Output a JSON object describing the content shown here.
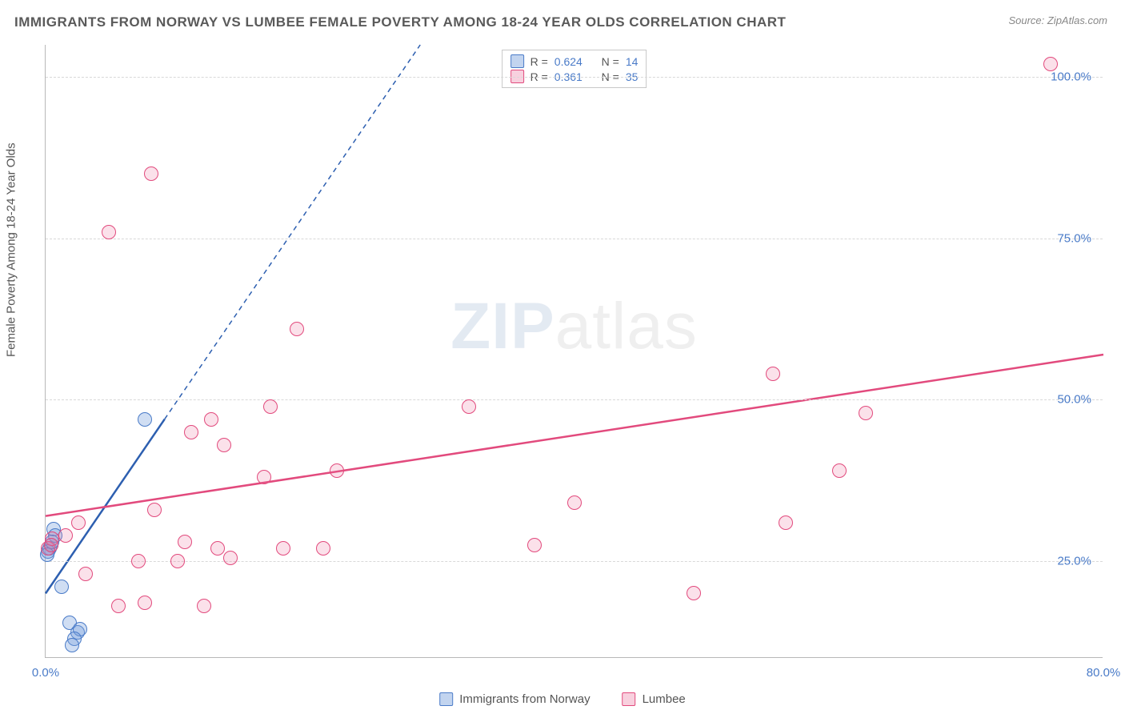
{
  "title": "IMMIGRANTS FROM NORWAY VS LUMBEE FEMALE POVERTY AMONG 18-24 YEAR OLDS CORRELATION CHART",
  "source": "Source: ZipAtlas.com",
  "watermark_zip": "ZIP",
  "watermark_atlas": "atlas",
  "y_axis_label": "Female Poverty Among 18-24 Year Olds",
  "chart": {
    "type": "scatter",
    "xlim": [
      0,
      80
    ],
    "ylim": [
      10,
      105
    ],
    "xticks": [
      {
        "v": 0,
        "label": "0.0%"
      },
      {
        "v": 80,
        "label": "80.0%"
      }
    ],
    "yticks": [
      {
        "v": 25,
        "label": "25.0%"
      },
      {
        "v": 50,
        "label": "50.0%"
      },
      {
        "v": 75,
        "label": "75.0%"
      },
      {
        "v": 100,
        "label": "100.0%"
      }
    ],
    "grid_color": "#d8d8d8",
    "background_color": "#ffffff",
    "marker_radius": 9,
    "series": [
      {
        "name": "Immigrants from Norway",
        "key": "norway",
        "color_fill": "rgba(120,160,220,0.35)",
        "color_stroke": "#4a7bc8",
        "R": 0.624,
        "N": 14,
        "trend": {
          "x1": 0,
          "y1": 20,
          "x2": 9,
          "y2": 47,
          "dash_extend_to_y": 105,
          "stroke": "#2d5fb0",
          "width": 2.5
        },
        "points": [
          {
            "x": 0.3,
            "y": 27
          },
          {
            "x": 0.4,
            "y": 27.5
          },
          {
            "x": 0.6,
            "y": 30
          },
          {
            "x": 0.2,
            "y": 26.5
          },
          {
            "x": 0.1,
            "y": 26
          },
          {
            "x": 0.7,
            "y": 29
          },
          {
            "x": 0.5,
            "y": 28
          },
          {
            "x": 1.2,
            "y": 21
          },
          {
            "x": 1.8,
            "y": 15.5
          },
          {
            "x": 2.4,
            "y": 14
          },
          {
            "x": 2.6,
            "y": 14.5
          },
          {
            "x": 2.2,
            "y": 13
          },
          {
            "x": 2.0,
            "y": 12
          },
          {
            "x": 7.5,
            "y": 47
          }
        ]
      },
      {
        "name": "Lumbee",
        "key": "lumbee",
        "color_fill": "rgba(235,120,160,0.22)",
        "color_stroke": "#e24a7d",
        "R": 0.361,
        "N": 35,
        "trend": {
          "x1": 0,
          "y1": 32,
          "x2": 80,
          "y2": 57,
          "stroke": "#e24a7d",
          "width": 2.5
        },
        "points": [
          {
            "x": 0.2,
            "y": 27
          },
          {
            "x": 0.5,
            "y": 28.5
          },
          {
            "x": 0.4,
            "y": 27.5
          },
          {
            "x": 3,
            "y": 23
          },
          {
            "x": 4.8,
            "y": 76
          },
          {
            "x": 5.5,
            "y": 18
          },
          {
            "x": 7,
            "y": 25
          },
          {
            "x": 7.5,
            "y": 18.5
          },
          {
            "x": 8,
            "y": 85
          },
          {
            "x": 8.2,
            "y": 33
          },
          {
            "x": 10,
            "y": 25
          },
          {
            "x": 10.5,
            "y": 28
          },
          {
            "x": 11,
            "y": 45
          },
          {
            "x": 12,
            "y": 18
          },
          {
            "x": 12.5,
            "y": 47
          },
          {
            "x": 13,
            "y": 27
          },
          {
            "x": 13.5,
            "y": 43
          },
          {
            "x": 14,
            "y": 25.5
          },
          {
            "x": 16.5,
            "y": 38
          },
          {
            "x": 17,
            "y": 49
          },
          {
            "x": 18,
            "y": 27
          },
          {
            "x": 19,
            "y": 61
          },
          {
            "x": 22,
            "y": 39
          },
          {
            "x": 21,
            "y": 27
          },
          {
            "x": 37,
            "y": 27.5
          },
          {
            "x": 32,
            "y": 49
          },
          {
            "x": 40,
            "y": 34
          },
          {
            "x": 49,
            "y": 20
          },
          {
            "x": 55,
            "y": 54
          },
          {
            "x": 56,
            "y": 31
          },
          {
            "x": 60,
            "y": 39
          },
          {
            "x": 62,
            "y": 48
          },
          {
            "x": 76,
            "y": 102
          },
          {
            "x": 1.5,
            "y": 29
          },
          {
            "x": 2.5,
            "y": 31
          }
        ]
      }
    ]
  },
  "legend_top": {
    "rows": [
      {
        "swatch": "blue",
        "r_label": "R =",
        "r_value": "0.624",
        "n_label": "N =",
        "n_value": "14"
      },
      {
        "swatch": "pink",
        "r_label": "R =",
        "r_value": "0.361",
        "n_label": "N =",
        "n_value": "35"
      }
    ]
  },
  "legend_bottom": {
    "items": [
      {
        "swatch": "blue",
        "label": "Immigrants from Norway"
      },
      {
        "swatch": "pink",
        "label": "Lumbee"
      }
    ]
  }
}
